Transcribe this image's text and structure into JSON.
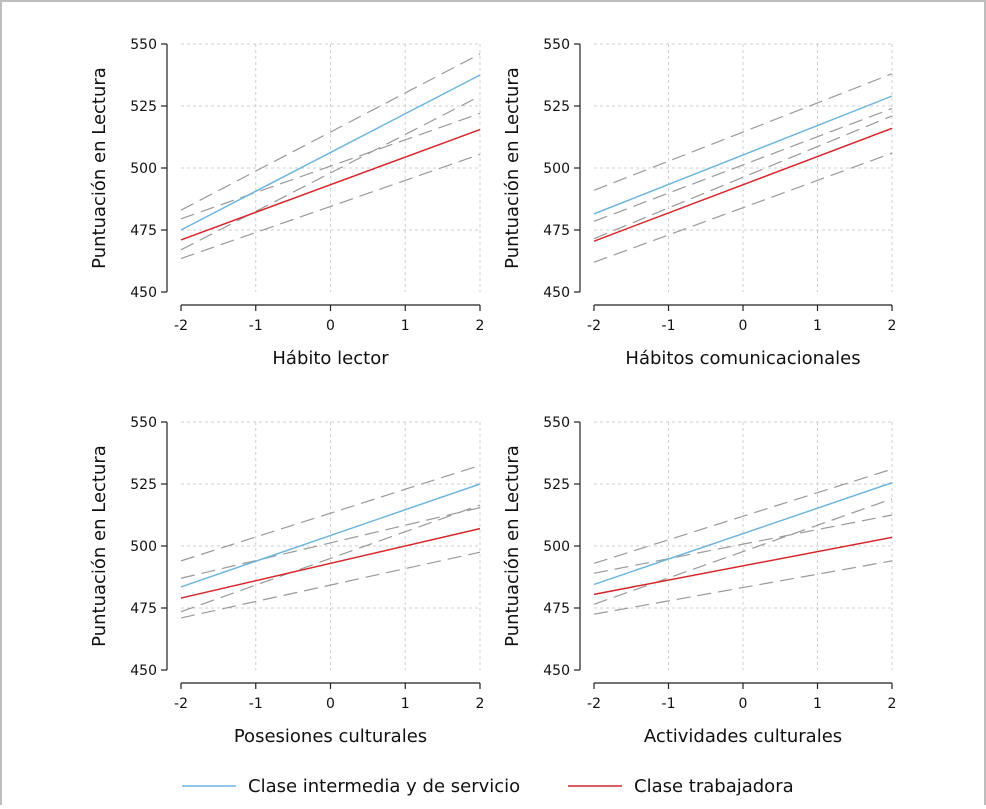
{
  "colors": {
    "intermedia": "#6fb6de",
    "trabajadora": "#d7262b",
    "ci": "#9a9a9a",
    "grid": "#cfcfcf",
    "axis": "#222222"
  },
  "legend": [
    {
      "label": "Clase intermedia y de servicio",
      "color": "#6fb6de"
    },
    {
      "label": "Clase trabajadora",
      "color": "#d7262b"
    }
  ],
  "chart_data": [
    {
      "type": "line",
      "xlabel": "Hábito lector",
      "ylabel": "Puntuación en Lectura",
      "xlim": [
        -2,
        2
      ],
      "ylim": [
        450,
        550
      ],
      "xticks": [
        "-2",
        "-1",
        "0",
        "1",
        "2"
      ],
      "yticks": [
        "450",
        "475",
        "500",
        "525",
        "550"
      ],
      "grid": true,
      "x": [
        -2,
        2
      ],
      "series": [
        {
          "name": "Clase intermedia y de servicio",
          "values": [
            475,
            537.5
          ],
          "ci_lower": [
            467,
            529
          ],
          "ci_upper": [
            483,
            546
          ]
        },
        {
          "name": "Clase trabajadora",
          "values": [
            471,
            515.5
          ],
          "ci_lower": [
            463.5,
            505.5
          ],
          "ci_upper": [
            479.5,
            522
          ]
        }
      ]
    },
    {
      "type": "line",
      "xlabel": "Hábitos comunicacionales",
      "ylabel": "Puntuación en Lectura",
      "xlim": [
        -2,
        2
      ],
      "ylim": [
        450,
        550
      ],
      "xticks": [
        "-2",
        "-1",
        "0",
        "1",
        "2"
      ],
      "yticks": [
        "450",
        "475",
        "500",
        "525",
        "550"
      ],
      "grid": true,
      "x": [
        -2,
        2
      ],
      "series": [
        {
          "name": "Clase intermedia y de servicio",
          "values": [
            481.5,
            529
          ],
          "ci_lower": [
            471.5,
            521
          ],
          "ci_upper": [
            491,
            538
          ]
        },
        {
          "name": "Clase trabajadora",
          "values": [
            470.5,
            516
          ],
          "ci_lower": [
            462,
            506
          ],
          "ci_upper": [
            478.5,
            524
          ]
        }
      ]
    },
    {
      "type": "line",
      "xlabel": "Posesiones culturales",
      "ylabel": "Puntuación en Lectura",
      "xlim": [
        -2,
        2
      ],
      "ylim": [
        450,
        550
      ],
      "xticks": [
        "-2",
        "-1",
        "0",
        "1",
        "2"
      ],
      "yticks": [
        "450",
        "475",
        "500",
        "525",
        "550"
      ],
      "grid": true,
      "x": [
        -2,
        2
      ],
      "series": [
        {
          "name": "Clase intermedia y de servicio",
          "values": [
            483.5,
            525
          ],
          "ci_lower": [
            473.5,
            516.5
          ],
          "ci_upper": [
            494,
            532.5
          ]
        },
        {
          "name": "Clase trabajadora",
          "values": [
            479,
            507
          ],
          "ci_lower": [
            471,
            497.5
          ],
          "ci_upper": [
            487,
            515.5
          ]
        }
      ]
    },
    {
      "type": "line",
      "xlabel": "Actividades culturales",
      "ylabel": "Puntuación en Lectura",
      "xlim": [
        -2,
        2
      ],
      "ylim": [
        450,
        550
      ],
      "xticks": [
        "-2",
        "-1",
        "0",
        "1",
        "2"
      ],
      "yticks": [
        "450",
        "475",
        "500",
        "525",
        "550"
      ],
      "grid": true,
      "x": [
        -2,
        2
      ],
      "series": [
        {
          "name": "Clase intermedia y de servicio",
          "values": [
            484.5,
            525.5
          ],
          "ci_lower": [
            476.5,
            519
          ],
          "ci_upper": [
            493,
            531
          ]
        },
        {
          "name": "Clase trabajadora",
          "values": [
            480.5,
            503.5
          ],
          "ci_lower": [
            472.5,
            494
          ],
          "ci_upper": [
            489,
            512.5
          ]
        }
      ]
    }
  ]
}
